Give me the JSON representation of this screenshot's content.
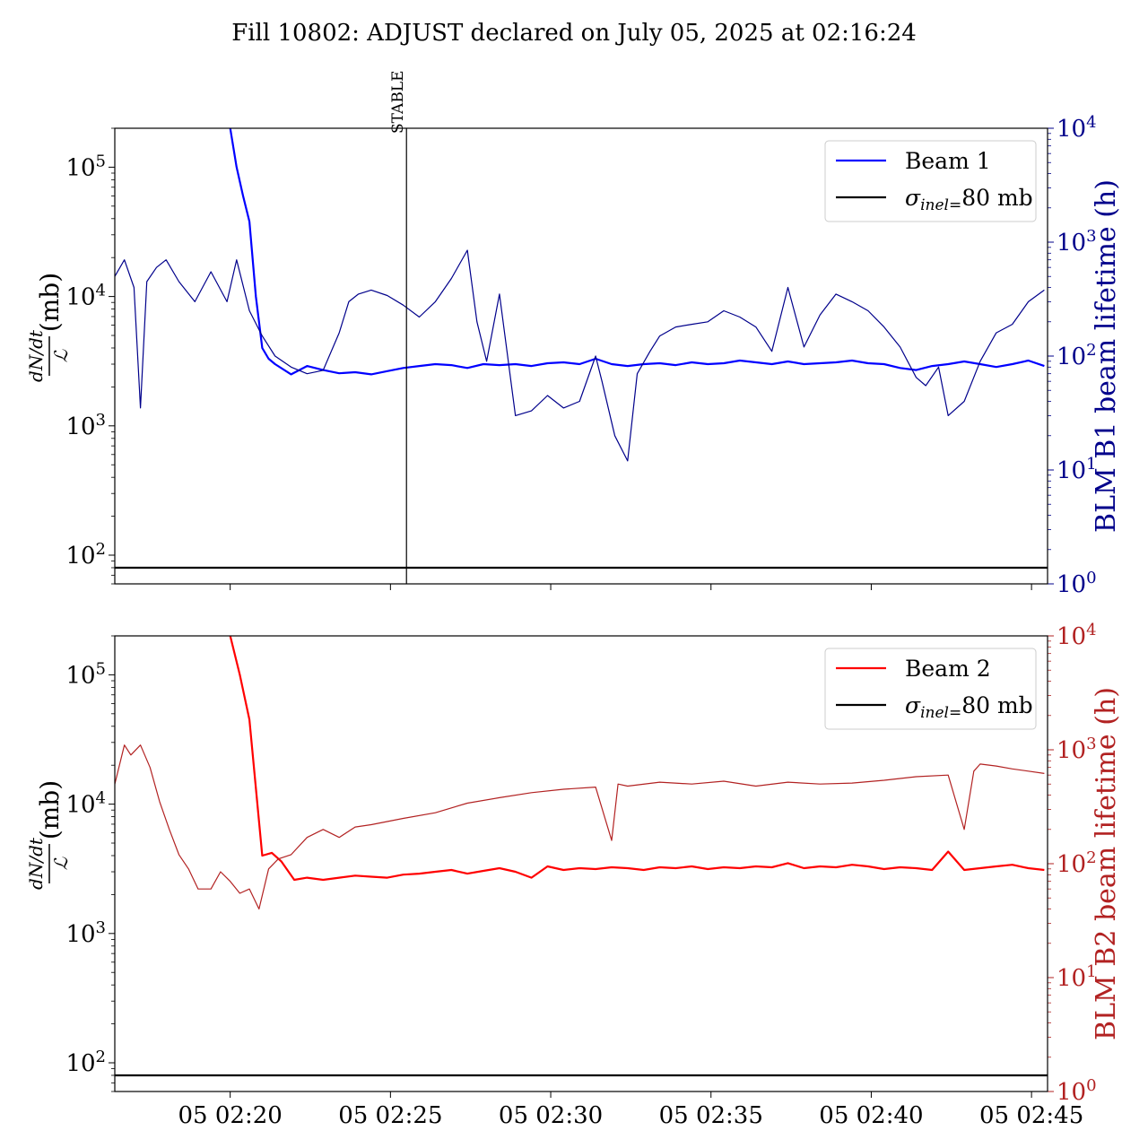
{
  "chart_data": {
    "title": "Fill 10802: ADJUST declared on July 05, 2025 at 02:16:24",
    "x_time_ticks": [
      "05 02:20",
      "05 02:25",
      "05 02:30",
      "05 02:35",
      "05 02:40",
      "05 02:45"
    ],
    "x_range_minutes": [
      "02:16:24",
      "02:45:30"
    ],
    "panels": [
      {
        "type": "line",
        "left_axis": {
          "label_math": "dN/dt",
          "label_den": "ℒ",
          "label_unit": "(mb)",
          "scale": "log",
          "range": [
            60,
            200000
          ],
          "ticks": [
            "10^2",
            "10^3",
            "10^4",
            "10^5"
          ]
        },
        "right_axis": {
          "label": "BLM B1 beam lifetime (h)",
          "scale": "log",
          "range": [
            1,
            10000
          ],
          "ticks": [
            "10^0",
            "10^1",
            "10^2",
            "10^3",
            "10^4"
          ],
          "color": "#00008b"
        },
        "legend": {
          "placement": "top-right",
          "entries": [
            "Beam 1",
            "σinel=80 mb"
          ]
        },
        "stable_marker": {
          "label": "STABLE",
          "time": "02:25:30"
        },
        "series": [
          {
            "name": "Beam 1",
            "axis": "left",
            "color": "#0000ff",
            "x_min": [
              3.6,
              3.8,
              4.0,
              4.2,
              4.4,
              4.6,
              4.8,
              5.0,
              5.5,
              6.0,
              6.5,
              7.0,
              7.5,
              8.0,
              8.5,
              9.0,
              9.5,
              10.0,
              10.5,
              11.0,
              11.5,
              12.0,
              12.5,
              13.0,
              13.5,
              14.0,
              14.5,
              15.0,
              15.5,
              16.0,
              16.5,
              17.0,
              17.5,
              18.0,
              18.5,
              19.0,
              19.5,
              20.0,
              20.5,
              21.0,
              21.5,
              22.0,
              22.5,
              23.0,
              23.5,
              24.0,
              24.5,
              25.0,
              25.5,
              26.0,
              26.5,
              27.0,
              27.5,
              28.0,
              28.5,
              29.0
            ],
            "y": [
              200000,
              100000,
              60000,
              38000,
              10000,
              4000,
              3300,
              3000,
              2500,
              2900,
              2700,
              2550,
              2600,
              2500,
              2650,
              2800,
              2900,
              3000,
              2950,
              2800,
              3000,
              2950,
              3000,
              2900,
              3050,
              3100,
              3000,
              3300,
              3000,
              2900,
              3000,
              3050,
              2950,
              3100,
              3000,
              3050,
              3200,
              3100,
              3000,
              3150,
              3000,
              3050,
              3100,
              3200,
              3050,
              3000,
              2800,
              2700,
              2900,
              3000,
              3150,
              3000,
              2850,
              3000,
              3200,
              2900
            ]
          },
          {
            "name": "BLM B1 beam lifetime",
            "axis": "right",
            "color": "#00008b",
            "x_min": [
              0,
              0.3,
              0.6,
              0.8,
              1.0,
              1.3,
              1.6,
              2.0,
              2.5,
              3.0,
              3.5,
              3.8,
              4.2,
              4.6,
              5.0,
              5.5,
              6.0,
              6.5,
              7.0,
              7.3,
              7.6,
              8.0,
              8.5,
              9.0,
              9.5,
              10.0,
              10.5,
              11.0,
              11.3,
              11.6,
              12.0,
              12.5,
              13.0,
              13.5,
              14.0,
              14.5,
              15.0,
              15.2,
              15.6,
              16.0,
              16.3,
              16.7,
              17.0,
              17.5,
              18.0,
              18.5,
              19.0,
              19.5,
              20.0,
              20.5,
              21.0,
              21.5,
              22.0,
              22.5,
              23.0,
              23.5,
              24.0,
              24.5,
              25.0,
              25.3,
              25.7,
              26.0,
              26.5,
              27.0,
              27.5,
              28.0,
              28.5,
              29.0
            ],
            "y": [
              500,
              700,
              400,
              35,
              450,
              600,
              700,
              450,
              300,
              550,
              300,
              700,
              250,
              150,
              100,
              80,
              70,
              75,
              160,
              300,
              350,
              380,
              340,
              280,
              220,
              300,
              480,
              850,
              200,
              90,
              350,
              30,
              33,
              45,
              35,
              40,
              100,
              60,
              20,
              12,
              70,
              110,
              150,
              180,
              190,
              200,
              250,
              220,
              180,
              110,
              400,
              120,
              230,
              350,
              300,
              250,
              180,
              120,
              65,
              55,
              80,
              30,
              40,
              90,
              160,
              190,
              300,
              380
            ]
          },
          {
            "name": "σinel=80 mb",
            "axis": "left",
            "color": "#000000",
            "constant": 80
          }
        ]
      },
      {
        "type": "line",
        "left_axis": {
          "label_math": "dN/dt",
          "label_den": "ℒ",
          "label_unit": "(mb)",
          "scale": "log",
          "range": [
            60,
            200000
          ],
          "ticks": [
            "10^2",
            "10^3",
            "10^4",
            "10^5"
          ]
        },
        "right_axis": {
          "label": "BLM B2 beam lifetime (h)",
          "scale": "log",
          "range": [
            1,
            10000
          ],
          "ticks": [
            "10^0",
            "10^1",
            "10^2",
            "10^3",
            "10^4"
          ],
          "color": "#b22222"
        },
        "legend": {
          "placement": "top-right",
          "entries": [
            "Beam 2",
            "σinel=80 mb"
          ]
        },
        "series": [
          {
            "name": "Beam 2",
            "axis": "left",
            "color": "#ff0000",
            "x_min": [
              3.6,
              3.9,
              4.2,
              4.6,
              4.9,
              5.2,
              5.6,
              6.0,
              6.5,
              7.0,
              7.5,
              8.0,
              8.5,
              9.0,
              9.5,
              10.0,
              10.5,
              11.0,
              11.5,
              12.0,
              12.5,
              13.0,
              13.5,
              14.0,
              14.5,
              15.0,
              15.5,
              16.0,
              16.5,
              17.0,
              17.5,
              18.0,
              18.5,
              19.0,
              19.5,
              20.0,
              20.5,
              21.0,
              21.5,
              22.0,
              22.5,
              23.0,
              23.5,
              24.0,
              24.5,
              25.0,
              25.5,
              26.0,
              26.5,
              27.0,
              27.5,
              28.0,
              28.5,
              29.0
            ],
            "y": [
              200000,
              100000,
              45000,
              4000,
              4200,
              3600,
              2600,
              2700,
              2600,
              2700,
              2800,
              2750,
              2700,
              2850,
              2900,
              3000,
              3100,
              2900,
              3050,
              3200,
              3000,
              2700,
              3300,
              3100,
              3200,
              3150,
              3250,
              3200,
              3100,
              3250,
              3200,
              3300,
              3150,
              3250,
              3200,
              3300,
              3250,
              3500,
              3200,
              3300,
              3250,
              3400,
              3300,
              3150,
              3250,
              3200,
              3100,
              4300,
              3100,
              3200,
              3300,
              3400,
              3200,
              3100
            ]
          },
          {
            "name": "BLM B2 beam lifetime",
            "axis": "right",
            "color": "#b22222",
            "x_min": [
              0,
              0.3,
              0.5,
              0.8,
              1.1,
              1.4,
              1.7,
              2.0,
              2.3,
              2.6,
              3.0,
              3.3,
              3.6,
              3.9,
              4.2,
              4.5,
              4.8,
              5.1,
              5.5,
              6.0,
              6.5,
              7.0,
              7.5,
              8.0,
              9.0,
              10.0,
              11.0,
              12.0,
              13.0,
              14.0,
              15.0,
              15.5,
              15.7,
              16.0,
              17.0,
              18.0,
              19.0,
              20.0,
              21.0,
              22.0,
              23.0,
              24.0,
              25.0,
              26.0,
              26.5,
              26.8,
              27.0,
              27.5,
              28.0,
              28.5,
              29.0
            ],
            "y": [
              500,
              1100,
              900,
              1100,
              700,
              350,
              200,
              120,
              90,
              60,
              60,
              85,
              70,
              55,
              60,
              40,
              90,
              110,
              120,
              170,
              200,
              170,
              210,
              220,
              250,
              280,
              340,
              380,
              420,
              450,
              470,
              160,
              500,
              480,
              520,
              500,
              530,
              480,
              520,
              500,
              510,
              540,
              580,
              600,
              200,
              650,
              750,
              720,
              680,
              650,
              620
            ]
          },
          {
            "name": "σinel=80 mb",
            "axis": "left",
            "color": "#000000",
            "constant": 80
          }
        ]
      }
    ]
  }
}
